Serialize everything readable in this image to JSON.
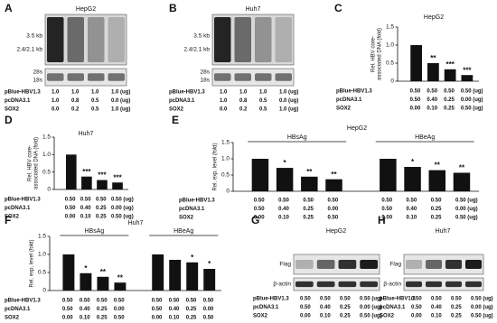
{
  "chart_data": [
    {
      "panel": "C",
      "type": "bar",
      "title": "HepG2",
      "y_label": [
        "Rel. HBV core-",
        "associated DNA (fold)"
      ],
      "ylim": [
        0,
        1.5
      ],
      "yticks": [
        0,
        0.5,
        {
          "value": 1,
          "label": "1.0"
        },
        1.5
      ],
      "color": "#111111",
      "series": [
        {
          "name": null,
          "values": [
            1.0,
            0.5,
            0.33,
            0.17
          ],
          "significance": [
            null,
            "**",
            "***",
            "***"
          ]
        }
      ],
      "conditions": [
        {
          "label": "pBlue-HBV1.3",
          "values": [
            "0.50",
            "0.50",
            "0.50",
            "0.50 (ug)"
          ]
        },
        {
          "label": "pcDNA3.1",
          "values": [
            "0.50",
            "0.40",
            "0.25",
            "0.00 (ug)"
          ]
        },
        {
          "label": "SOX2",
          "values": [
            "0.00",
            "0.10",
            "0.25",
            "0.50 (ug)"
          ]
        }
      ]
    },
    {
      "panel": "D",
      "type": "bar",
      "title": "Huh7",
      "y_label": [
        "Rel. HBV core-",
        "associated DNA (fold)"
      ],
      "ylim": [
        0,
        1.5
      ],
      "yticks": [
        0,
        0.5,
        {
          "value": 1,
          "label": "1.0"
        },
        1.5
      ],
      "color": "#111111",
      "series": [
        {
          "name": null,
          "values": [
            1.0,
            0.37,
            0.27,
            0.2
          ],
          "significance": [
            null,
            "***",
            "***",
            "***"
          ]
        }
      ],
      "conditions": [
        {
          "label": "pBlue-HBV1.3",
          "values": [
            "0.50",
            "0.50",
            "0.50",
            "0.50 (ug)"
          ]
        },
        {
          "label": "pcDNA3.1",
          "values": [
            "0.50",
            "0.40",
            "0.25",
            "0.00 (ug)"
          ]
        },
        {
          "label": "SOX2",
          "values": [
            "0.00",
            "0.10",
            "0.25",
            "0.50 (ug)"
          ]
        }
      ]
    },
    {
      "panel": "E",
      "type": "bar",
      "title": "HepG2",
      "y_label": [
        "Rel. exp. level (fold)"
      ],
      "ylim": [
        0,
        1.5
      ],
      "yticks": [
        0,
        0.5,
        {
          "value": 1,
          "label": "1.0"
        },
        1.5
      ],
      "color": "#111111",
      "series": [
        {
          "name": "HBsAg",
          "values": [
            1.0,
            0.72,
            0.45,
            0.37
          ],
          "significance": [
            null,
            "*",
            "**",
            "**"
          ]
        },
        {
          "name": "HBeAg",
          "values": [
            1.0,
            0.75,
            0.65,
            0.57
          ],
          "significance": [
            null,
            "*",
            "**",
            "**"
          ]
        }
      ],
      "conditions": [
        {
          "label": "pBlue-HBV1.3",
          "values": [
            "0.50",
            "0.50",
            "0.50",
            "0.50",
            "0.50",
            "0.50",
            "0.50",
            "0.50 (ug)"
          ]
        },
        {
          "label": "pcDNA3.1",
          "values": [
            "0.50",
            "0.40",
            "0.25",
            "0.00",
            "0.50",
            "0.40",
            "0.25",
            "0.00 (ug)"
          ]
        },
        {
          "label": "SOX2",
          "values": [
            "0.00",
            "0.10",
            "0.25",
            "0.50",
            "0.00",
            "0.10",
            "0.25",
            "0.50 (ug)"
          ]
        }
      ]
    },
    {
      "panel": "F",
      "type": "bar",
      "title": "Huh7",
      "y_label": [
        "Rel. exp. level (fold)"
      ],
      "ylim": [
        0,
        1.5
      ],
      "yticks": [
        0,
        0.5,
        {
          "value": 1,
          "label": "1.0"
        },
        1.5
      ],
      "color": "#111111",
      "series": [
        {
          "name": "HBsAg",
          "values": [
            1.0,
            0.48,
            0.38,
            0.22
          ],
          "significance": [
            null,
            "*",
            "**",
            "**"
          ]
        },
        {
          "name": "HBeAg",
          "values": [
            1.0,
            0.85,
            0.78,
            0.6
          ],
          "significance": [
            null,
            null,
            "*",
            "*"
          ]
        }
      ],
      "conditions": [
        {
          "label": "pBlue-HBV1.3",
          "values": [
            "0.50",
            "0.50",
            "0.50",
            "0.50",
            "0.50",
            "0.50",
            "0.50",
            "0.50"
          ]
        },
        {
          "label": "pcDNA3.1",
          "values": [
            "0.50",
            "0.40",
            "0.25",
            "0.00",
            "0.50",
            "0.40",
            "0.25",
            "0.00"
          ]
        },
        {
          "label": "SOX2",
          "values": [
            "0.00",
            "0.10",
            "0.25",
            "0.50",
            "0.00",
            "0.10",
            "0.25",
            "0.50"
          ]
        }
      ]
    }
  ],
  "blots": [
    {
      "panel": "A",
      "title": "HepG2",
      "labels": [
        "3.5 kb",
        "2.4/2.1 kb",
        "28s",
        "18s"
      ],
      "conditions": [
        {
          "label": "pBlue-HBV1.3",
          "values": [
            "1.0",
            "1.0",
            "1.0",
            "1.0 (ug)"
          ]
        },
        {
          "label": "pcDNA3.1",
          "values": [
            "1.0",
            "0.8",
            "0.5",
            "0.0 (ug)"
          ]
        },
        {
          "label": "SOX2",
          "values": [
            "0.0",
            "0.2",
            "0.5",
            "1.0 (ug)"
          ]
        }
      ]
    },
    {
      "panel": "B",
      "title": "Huh7",
      "labels": [
        "3.5 kb",
        "2.4/2.1 kb",
        "28s",
        "18s"
      ],
      "conditions": [
        {
          "label": "pBlue-HBV1.3",
          "values": [
            "1.0",
            "1.0",
            "1.0",
            "1.0 (ug)"
          ]
        },
        {
          "label": "pcDNA3.1",
          "values": [
            "1.0",
            "0.8",
            "0.5",
            "0.0 (ug)"
          ]
        },
        {
          "label": "SOX2",
          "values": [
            "0.0",
            "0.2",
            "0.5",
            "1.0 (ug)"
          ]
        }
      ]
    },
    {
      "panel": "G",
      "title": "HepG2",
      "labels": [
        "Flag",
        "β-actin"
      ],
      "conditions": [
        {
          "label": "pBlue-HBV1.3",
          "values": [
            "0.50",
            "0.50",
            "0.50",
            "0.50 (ug)"
          ]
        },
        {
          "label": "pcDNA3.1",
          "values": [
            "0.50",
            "0.40",
            "0.25",
            "0.00 (ug)"
          ]
        },
        {
          "label": "SOX2",
          "values": [
            "0.00",
            "0.10",
            "0.25",
            "0.50 (ug)"
          ]
        }
      ]
    },
    {
      "panel": "H",
      "title": "Huh7",
      "labels": [
        "Flag",
        "β-actin"
      ],
      "conditions": [
        {
          "label": "pBlue-HBV1.3",
          "values": [
            "0.50",
            "0.50",
            "0.50",
            "0.50 (ug)"
          ]
        },
        {
          "label": "pcDNA3.1",
          "values": [
            "0.50",
            "0.40",
            "0.25",
            "0.00 (ug)"
          ]
        },
        {
          "label": "SOX2",
          "values": [
            "0.00",
            "0.10",
            "0.25",
            "0.50 (ug)"
          ]
        }
      ]
    }
  ]
}
